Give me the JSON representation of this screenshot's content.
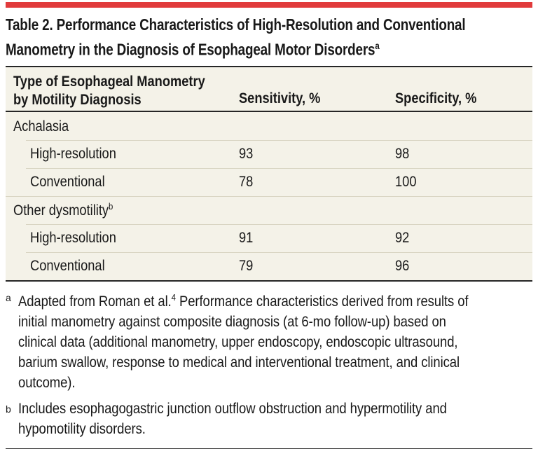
{
  "colors": {
    "accent_red": "#e13b3c",
    "panel_background": "#f4f2e8",
    "row_divider": "#d9d5c3",
    "strong_rule": "#262626",
    "text": "#191919"
  },
  "title": {
    "text": "Table 2. Performance Characteristics of High-Resolution and Conventional Manometry in the Diagnosis of Esophageal Motor Disorders",
    "marker": "a"
  },
  "table": {
    "header": {
      "col1_line1": "Type of Esophageal Manometry",
      "col1_line2": "by Motility Diagnosis",
      "col2": "Sensitivity, %",
      "col3": "Specificity, %"
    },
    "groups": [
      {
        "label": "Achalasia",
        "marker": "",
        "rows": [
          {
            "label": "High-resolution",
            "sensitivity": "93",
            "specificity": "98"
          },
          {
            "label": "Conventional",
            "sensitivity": "78",
            "specificity": "100"
          }
        ]
      },
      {
        "label": "Other dysmotility",
        "marker": "b",
        "rows": [
          {
            "label": "High-resolution",
            "sensitivity": "91",
            "specificity": "92"
          },
          {
            "label": "Conventional",
            "sensitivity": "79",
            "specificity": "96"
          }
        ]
      }
    ]
  },
  "footnotes": {
    "a": {
      "marker": "a",
      "part1": "Adapted from Roman et al.",
      "citation": "4",
      "part2": " Performance characteristics derived from results of initial manometry against composite diagnosis (at 6-mo follow-up) based on clinical data (additional manometry, upper endoscopy, endoscopic ultrasound, barium swallow, response to medical and interventional treatment, and clinical outcome)."
    },
    "b": {
      "marker": "b",
      "text": "Includes esophagogastric junction outflow obstruction and hypermotility and hypomotility disorders."
    }
  }
}
